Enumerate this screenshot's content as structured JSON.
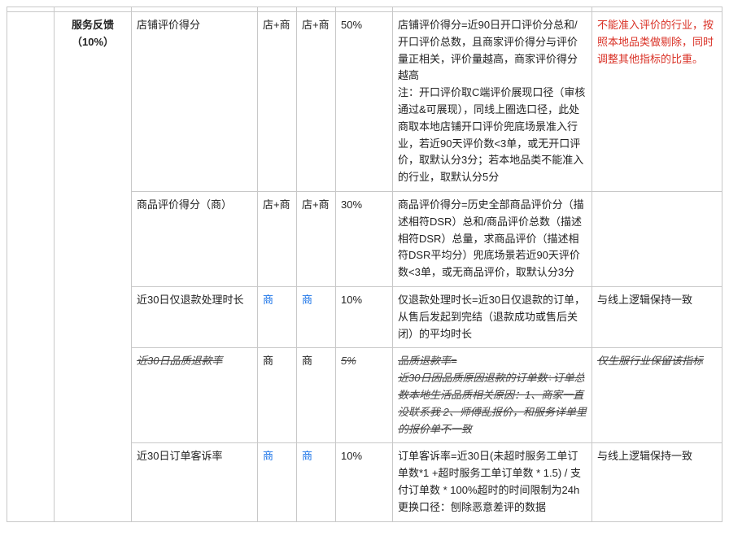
{
  "category": {
    "label": "服务反馈",
    "weight": "（10%）"
  },
  "rows": [
    {
      "metric": "店铺评价得分",
      "scope1": "店+商",
      "scope1_blue": false,
      "scope2": "店+商",
      "scope2_blue": false,
      "weight": "50%",
      "desc": "店铺评价得分=近90日开口评价分总和/开口评价总数，且商家评价得分与评价量正相关，评价量越高，商家评价得分越高\n注：开口评价取C端评价展现口径（审核通过&可展现），同线上圈选口径，此处商取本地店铺开口评价兜底场景准入行业，若近90天评价数<3单，或无开口评价，取默认分3分；若本地品类不能准入的行业，取默认分5分",
      "note": "不能准入评价的行业，按照本地品类做剔除，同时调整其他指标的比重。",
      "note_red": true,
      "struck": false
    },
    {
      "metric": "商品评价得分（商）",
      "scope1": "店+商",
      "scope1_blue": false,
      "scope2": "店+商",
      "scope2_blue": false,
      "weight": "30%",
      "desc": "商品评价得分=历史全部商品评价分（描述相符DSR）总和/商品评价总数（描述相符DSR）总量，求商品评价（描述相符DSR平均分）兜底场景若近90天评价数<3单，或无商品评价，取默认分3分",
      "note": "",
      "note_red": false,
      "struck": false
    },
    {
      "metric": "近30日仅退款处理时长",
      "scope1": "商",
      "scope1_blue": true,
      "scope2": "商",
      "scope2_blue": true,
      "weight": "10%",
      "desc": "仅退款处理时长=近30日仅退款的订单，从售后发起到完结（退款成功或售后关闭）的平均时长",
      "note": "与线上逻辑保持一致",
      "note_red": false,
      "struck": false
    },
    {
      "metric": "近30日品质退款率",
      "scope1": "商",
      "scope1_blue": false,
      "scope2": "商",
      "scope2_blue": false,
      "weight": "5%",
      "desc": "品质退款率=\n近30日因品质原因退款的订单数÷订单总数本地生活品质相关原因：1、商家一直没联系我 2、师傅乱报价，和服务详单里的报价单不一致",
      "note": "仅生服行业保留该指标",
      "note_red": false,
      "struck": true
    },
    {
      "metric": "近30日订单客诉率",
      "scope1": "商",
      "scope1_blue": true,
      "scope2": "商",
      "scope2_blue": true,
      "weight": "10%",
      "desc": "订单客诉率=近30日(未超时服务工单订单数*1 +超时服务工单订单数 * 1.5) / 支付订单数 * 100%超时的时间限制为24h\n更换口径：刨除恶意差评的数据",
      "note": "与线上逻辑保持一致",
      "note_red": false,
      "struck": false
    }
  ]
}
